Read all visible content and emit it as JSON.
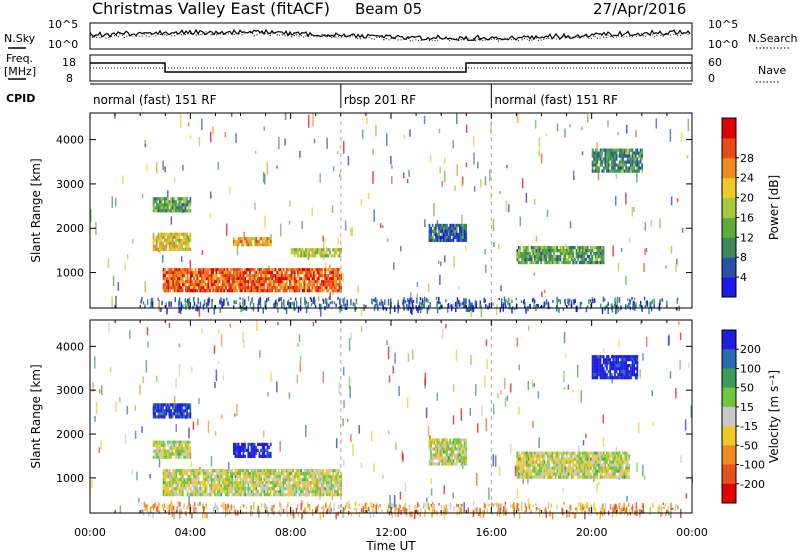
{
  "header": {
    "station": "Christmas Valley East (fitACF)",
    "beam": "Beam 05",
    "date": "27/Apr/2016"
  },
  "sky_panel": {
    "left_label": "N.Sky",
    "right_label": "N.Search",
    "ticks": [
      "10^5",
      "10^0"
    ]
  },
  "freq_panel": {
    "left_label_1": "Freq.",
    "left_label_2": "[MHz]",
    "left_ticks": [
      "18",
      "8"
    ],
    "right_label": "Nave",
    "right_ticks": [
      "60",
      "0"
    ]
  },
  "cpid": {
    "label": "CPID",
    "segments": [
      {
        "text": "normal (fast) 151 RF",
        "start_h": 0,
        "end_h": 10
      },
      {
        "text": "rbsp 201 RF",
        "start_h": 10,
        "end_h": 16
      },
      {
        "text": "normal (fast) 151 RF",
        "start_h": 16,
        "end_h": 24
      }
    ]
  },
  "chart_data": [
    {
      "type": "heatmap",
      "name": "power",
      "ylabel": "Slant Range [km]",
      "ylim": [
        200,
        4600
      ],
      "yticks": [
        1000,
        2000,
        3000,
        4000
      ],
      "colorbar_label": "Power [dB]",
      "colorbar_ticks": [
        4,
        8,
        12,
        16,
        20,
        24,
        28
      ],
      "colors": [
        "#1a1ae6",
        "#2850a8",
        "#3c8a5a",
        "#5faa3c",
        "#a8c83c",
        "#f0c828",
        "#f08c1e",
        "#e84a14",
        "#e00000"
      ],
      "regions": [
        {
          "x": [
            2.9,
            10.0
          ],
          "y": [
            600,
            1100
          ],
          "level": 0.8
        },
        {
          "x": [
            2.5,
            4.0
          ],
          "y": [
            1550,
            1900
          ],
          "level": 0.6
        },
        {
          "x": [
            5.7,
            7.2
          ],
          "y": [
            1600,
            1800
          ],
          "level": 0.65
        },
        {
          "x": [
            8.0,
            10.0
          ],
          "y": [
            1400,
            1550
          ],
          "level": 0.5
        },
        {
          "x": [
            13.5,
            15.0
          ],
          "y": [
            1700,
            2100
          ],
          "level": 0.2
        },
        {
          "x": [
            17.0,
            20.5
          ],
          "y": [
            1200,
            1600
          ],
          "level": 0.35
        },
        {
          "x": [
            20.0,
            22.0
          ],
          "y": [
            3300,
            3800
          ],
          "level": 0.3
        },
        {
          "x": [
            2.5,
            4.0
          ],
          "y": [
            2400,
            2700
          ],
          "level": 0.35
        }
      ]
    },
    {
      "type": "heatmap",
      "name": "velocity",
      "xlabel": "Time UT",
      "ylabel": "Slant Range [km]",
      "ylim": [
        200,
        4600
      ],
      "yticks": [
        1000,
        2000,
        3000,
        4000
      ],
      "xticks": [
        "00:00",
        "04:00",
        "08:00",
        "12:00",
        "16:00",
        "20:00",
        "00:00"
      ],
      "colorbar_label": "Velocity [m s⁻¹]",
      "colorbar_ticks": [
        200,
        100,
        50,
        15,
        -15,
        -50,
        -100,
        -200
      ],
      "colors": [
        "#1e1ee0",
        "#2a6ab4",
        "#3c9a5a",
        "#6cc83c",
        "#c8c8c8",
        "#f0c828",
        "#f08c1e",
        "#e8501e",
        "#e00000"
      ],
      "regions": [
        {
          "x": [
            2.9,
            10.0
          ],
          "y": [
            600,
            1200
          ],
          "level": 0.5
        },
        {
          "x": [
            2.5,
            4.0
          ],
          "y": [
            1500,
            1850
          ],
          "level": 0.5
        },
        {
          "x": [
            5.7,
            7.2
          ],
          "y": [
            1500,
            1800
          ],
          "level": 0.0
        },
        {
          "x": [
            13.5,
            15.0
          ],
          "y": [
            1300,
            1900
          ],
          "level": 0.5
        },
        {
          "x": [
            17.0,
            21.5
          ],
          "y": [
            1000,
            1600
          ],
          "level": 0.5
        },
        {
          "x": [
            20.0,
            21.8
          ],
          "y": [
            3300,
            3800
          ],
          "level": 0.0
        },
        {
          "x": [
            2.5,
            4.0
          ],
          "y": [
            2400,
            2700
          ],
          "level": 0.1
        }
      ]
    }
  ]
}
